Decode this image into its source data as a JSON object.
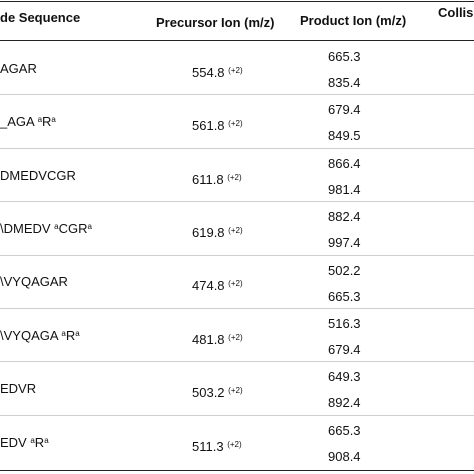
{
  "headers": {
    "sequence": "de Sequence",
    "precursor": "Precursor Ion (m/z)",
    "product": "Product Ion  (m/z)",
    "collision": "Collisi"
  },
  "rows": [
    {
      "seq_pre": "AGAR",
      "seq_sup": "",
      "seq_post": "",
      "seq_sup2": "",
      "precursor": "554.8",
      "charge": "(+2)",
      "products": [
        "665.3",
        "835.4"
      ]
    },
    {
      "seq_pre": "_AGA ",
      "seq_sup": "a",
      "seq_post": "R",
      "seq_sup2": "a",
      "precursor": "561.8",
      "charge": "(+2)",
      "products": [
        "679.4",
        "849.5"
      ]
    },
    {
      "seq_pre": "DMEDVCGR",
      "seq_sup": "",
      "seq_post": "",
      "seq_sup2": "",
      "precursor": "611.8",
      "charge": "(+2)",
      "products": [
        "866.4",
        "981.4"
      ]
    },
    {
      "seq_pre": "\\DMEDV ",
      "seq_sup": "a",
      "seq_post": "CGR",
      "seq_sup2": "a",
      "precursor": "619.8",
      "charge": "(+2)",
      "products": [
        "882.4",
        "997.4"
      ]
    },
    {
      "seq_pre": "\\VYQAGAR",
      "seq_sup": "",
      "seq_post": "",
      "seq_sup2": "",
      "precursor": "474.8",
      "charge": "(+2)",
      "products": [
        "502.2",
        "665.3"
      ]
    },
    {
      "seq_pre": "\\VYQAGA ",
      "seq_sup": "a",
      "seq_post": "R",
      "seq_sup2": "a",
      "precursor": "481.8",
      "charge": "(+2)",
      "products": [
        "516.3",
        "679.4"
      ]
    },
    {
      "seq_pre": "EDVR",
      "seq_sup": "",
      "seq_post": "",
      "seq_sup2": "",
      "precursor": "503.2",
      "charge": "(+2)",
      "products": [
        "649.3",
        "892.4"
      ]
    },
    {
      "seq_pre": "EDV ",
      "seq_sup": "a",
      "seq_post": "R",
      "seq_sup2": "a",
      "precursor": "511.3",
      "charge": "(+2)",
      "products": [
        "665.3",
        "908.4"
      ]
    }
  ]
}
